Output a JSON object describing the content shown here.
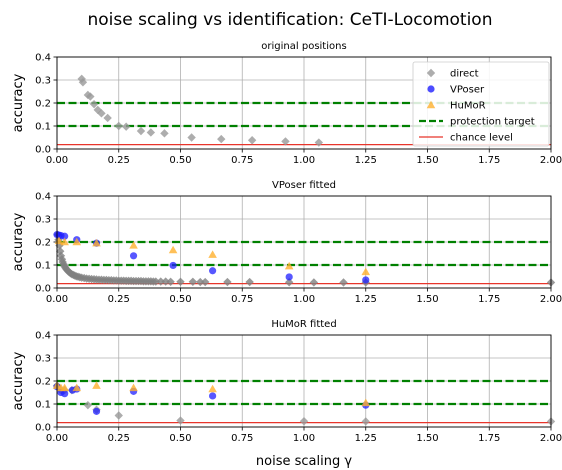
{
  "figure": {
    "suptitle": "noise scaling vs identification: CeTI-Locomotion",
    "xlabel": "noise scaling γ",
    "ylabel": "accuracy"
  },
  "legend": {
    "entries": [
      "direct",
      "VPoser",
      "HuMoR",
      "protection target",
      "chance level"
    ]
  },
  "colors": {
    "direct": "#999999",
    "vposer": "#1f1fff",
    "humor": "#ffb02e",
    "protection": "#008000",
    "chance": "#e8352b",
    "grid": "#b0b0b0",
    "gray_dense": "#808080"
  },
  "chart_data": [
    {
      "type": "scatter",
      "title": "original positions",
      "xlabel": "",
      "ylabel": "accuracy",
      "xlim": [
        0,
        2.0
      ],
      "ylim": [
        0,
        0.4
      ],
      "xticks": [
        "0.00",
        "0.25",
        "0.50",
        "0.75",
        "1.00",
        "1.25",
        "1.50",
        "1.75",
        "2.00"
      ],
      "yticks": [
        "0.0",
        "0.1",
        "0.2",
        "0.3",
        "0.4"
      ],
      "grid": true,
      "legend_position": "top-right",
      "hlines": [
        {
          "name": "protection target",
          "y": 0.2,
          "style": "dashed"
        },
        {
          "name": "protection target",
          "y": 0.1,
          "style": "dashed"
        },
        {
          "name": "chance level",
          "y": 0.019,
          "style": "solid"
        }
      ],
      "series": [
        {
          "name": "direct",
          "marker": "diamond",
          "x": [
            0.1,
            0.105,
            0.125,
            0.135,
            0.15,
            0.165,
            0.18,
            0.205,
            0.25,
            0.28,
            0.34,
            0.38,
            0.435,
            0.545,
            0.665,
            0.79,
            0.925,
            1.06
          ],
          "y": [
            0.305,
            0.29,
            0.235,
            0.228,
            0.195,
            0.17,
            0.155,
            0.135,
            0.1,
            0.097,
            0.078,
            0.072,
            0.068,
            0.05,
            0.043,
            0.038,
            0.033,
            0.028
          ]
        }
      ]
    },
    {
      "type": "scatter",
      "title": "VPoser fitted",
      "xlabel": "",
      "ylabel": "accuracy",
      "xlim": [
        0,
        2.0
      ],
      "ylim": [
        0,
        0.4
      ],
      "xticks": [
        "0.00",
        "0.25",
        "0.50",
        "0.75",
        "1.00",
        "1.25",
        "1.50",
        "1.75",
        "2.00"
      ],
      "yticks": [
        "0.0",
        "0.1",
        "0.2",
        "0.3",
        "0.4"
      ],
      "grid": true,
      "hlines": [
        {
          "name": "protection target",
          "y": 0.2,
          "style": "dashed"
        },
        {
          "name": "protection target",
          "y": 0.1,
          "style": "dashed"
        },
        {
          "name": "chance level",
          "y": 0.019,
          "style": "solid"
        }
      ],
      "series": [
        {
          "name": "direct",
          "marker": "diamond",
          "x": [
            0.003,
            0.006,
            0.01,
            0.013,
            0.016,
            0.02,
            0.023,
            0.027,
            0.03,
            0.034,
            0.038,
            0.042,
            0.046,
            0.05,
            0.055,
            0.06,
            0.066,
            0.072,
            0.078,
            0.085,
            0.092,
            0.1,
            0.11,
            0.12,
            0.13,
            0.14,
            0.15,
            0.16,
            0.17,
            0.18,
            0.19,
            0.2,
            0.21,
            0.22,
            0.23,
            0.24,
            0.25,
            0.26,
            0.27,
            0.28,
            0.29,
            0.3,
            0.31,
            0.32,
            0.33,
            0.34,
            0.35,
            0.36,
            0.37,
            0.38,
            0.39,
            0.4,
            0.42,
            0.44,
            0.46,
            0.5,
            0.55,
            0.58,
            0.6,
            0.69,
            0.78,
            0.94,
            1.04,
            1.16,
            1.25,
            2.0
          ],
          "y": [
            0.232,
            0.21,
            0.185,
            0.16,
            0.14,
            0.125,
            0.113,
            0.103,
            0.095,
            0.088,
            0.082,
            0.077,
            0.072,
            0.068,
            0.064,
            0.06,
            0.057,
            0.054,
            0.051,
            0.049,
            0.047,
            0.045,
            0.043,
            0.041,
            0.04,
            0.039,
            0.038,
            0.037,
            0.036,
            0.036,
            0.035,
            0.035,
            0.034,
            0.034,
            0.033,
            0.033,
            0.032,
            0.032,
            0.032,
            0.031,
            0.031,
            0.031,
            0.03,
            0.03,
            0.03,
            0.03,
            0.029,
            0.029,
            0.029,
            0.029,
            0.028,
            0.028,
            0.028,
            0.028,
            0.027,
            0.027,
            0.027,
            0.026,
            0.026,
            0.026,
            0.026,
            0.025,
            0.024,
            0.024,
            0.024,
            0.024
          ]
        },
        {
          "name": "VPoser",
          "marker": "circle",
          "x": [
            0.0,
            0.008,
            0.016,
            0.031,
            0.08,
            0.16,
            0.31,
            0.47,
            0.63,
            0.94,
            1.25
          ],
          "y": [
            0.232,
            0.23,
            0.228,
            0.225,
            0.21,
            0.195,
            0.14,
            0.098,
            0.075,
            0.048,
            0.035
          ]
        },
        {
          "name": "HuMoR",
          "marker": "triangle",
          "x": [
            0.008,
            0.031,
            0.08,
            0.16,
            0.31,
            0.47,
            0.63,
            0.94,
            1.25
          ],
          "y": [
            0.205,
            0.2,
            0.2,
            0.195,
            0.185,
            0.165,
            0.145,
            0.095,
            0.07
          ]
        }
      ]
    },
    {
      "type": "scatter",
      "title": "HuMoR fitted",
      "xlabel": "noise scaling γ",
      "ylabel": "accuracy",
      "xlim": [
        0,
        2.0
      ],
      "ylim": [
        0,
        0.4
      ],
      "xticks": [
        "0.00",
        "0.25",
        "0.50",
        "0.75",
        "1.00",
        "1.25",
        "1.50",
        "1.75",
        "2.00"
      ],
      "yticks": [
        "0.0",
        "0.1",
        "0.2",
        "0.3",
        "0.4"
      ],
      "grid": true,
      "hlines": [
        {
          "name": "protection target",
          "y": 0.2,
          "style": "dashed"
        },
        {
          "name": "protection target",
          "y": 0.1,
          "style": "dashed"
        },
        {
          "name": "chance level",
          "y": 0.019,
          "style": "solid"
        }
      ],
      "series": [
        {
          "name": "direct",
          "marker": "diamond",
          "x": [
            0.0,
            0.016,
            0.031,
            0.06,
            0.125,
            0.16,
            0.25,
            0.5,
            1.0,
            1.25,
            2.0
          ],
          "y": [
            0.18,
            0.16,
            0.16,
            0.16,
            0.095,
            0.075,
            0.05,
            0.028,
            0.025,
            0.024,
            0.024
          ]
        },
        {
          "name": "VPoser",
          "marker": "circle",
          "x": [
            0.0,
            0.016,
            0.031,
            0.063,
            0.08,
            0.16,
            0.31,
            0.63,
            1.25
          ],
          "y": [
            0.175,
            0.15,
            0.145,
            0.16,
            0.165,
            0.068,
            0.155,
            0.135,
            0.095
          ]
        },
        {
          "name": "HuMoR",
          "marker": "triangle",
          "x": [
            0.0,
            0.016,
            0.031,
            0.08,
            0.16,
            0.31,
            0.63,
            1.25
          ],
          "y": [
            0.18,
            0.17,
            0.17,
            0.17,
            0.18,
            0.17,
            0.165,
            0.105
          ]
        }
      ]
    }
  ]
}
